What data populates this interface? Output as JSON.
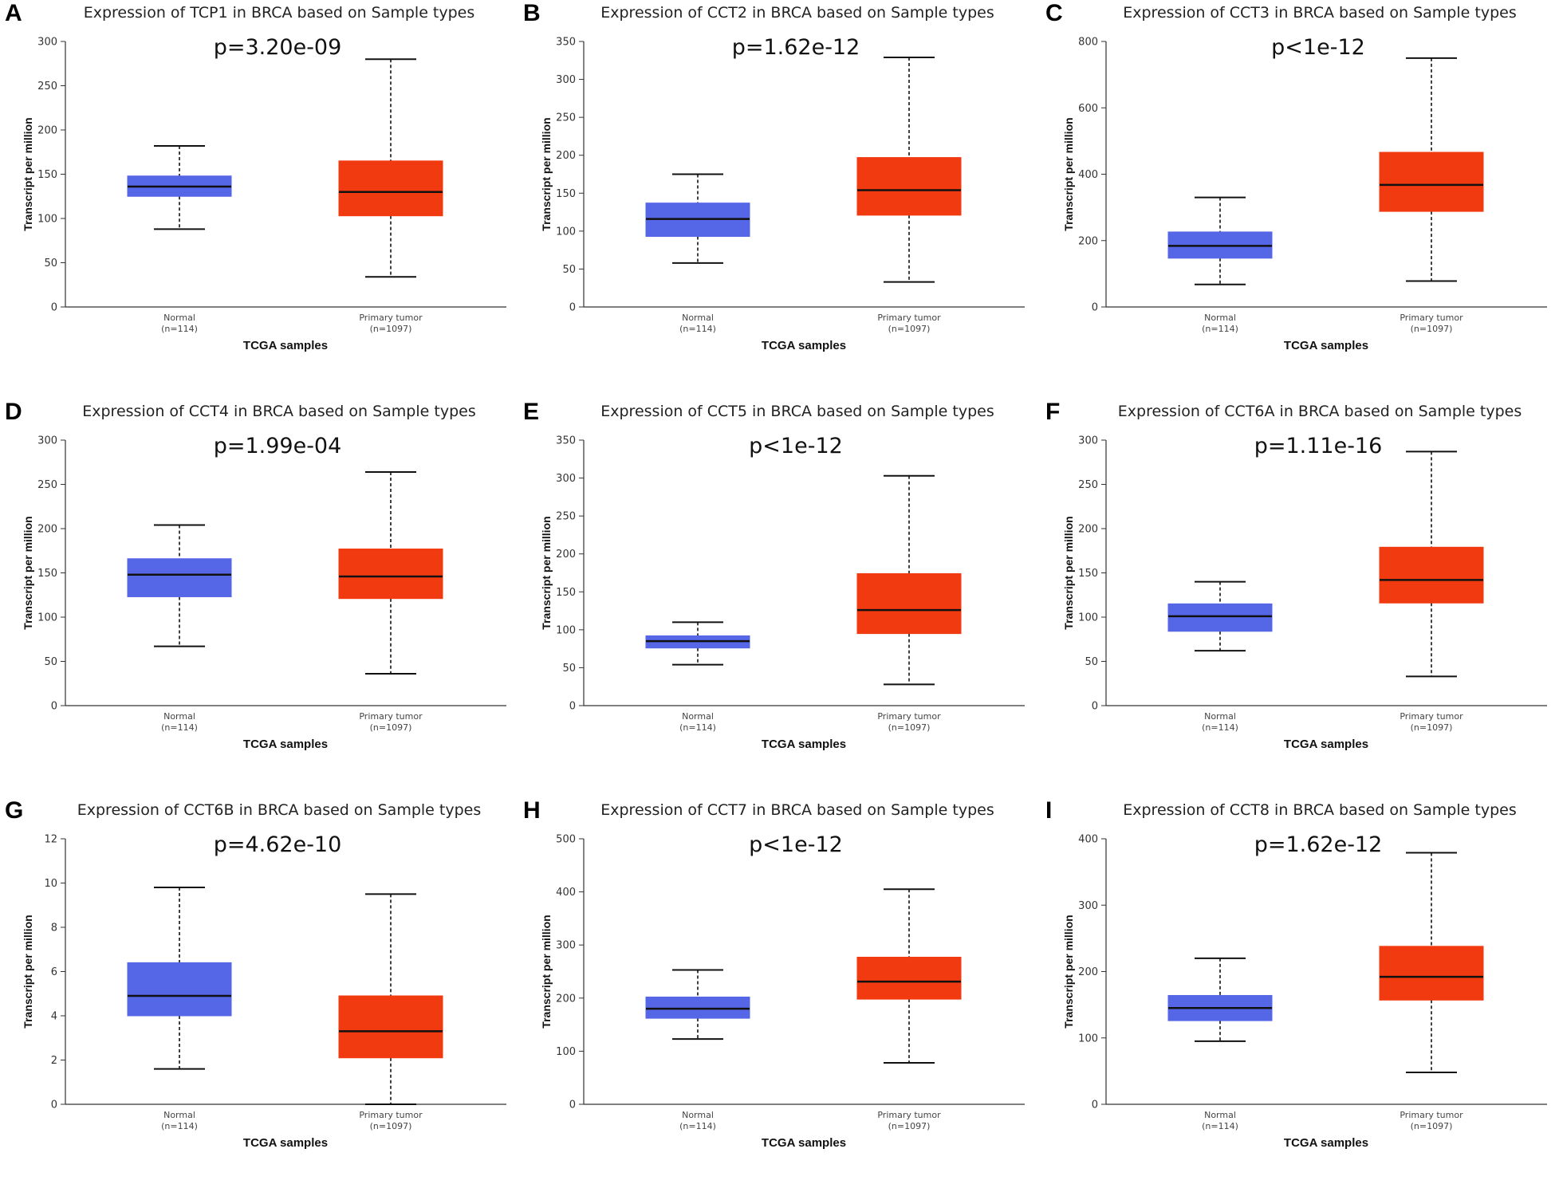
{
  "chart_data": [
    {
      "type": "box",
      "panel_label": "A",
      "title": "Expression of TCP1 in BRCA based on Sample types",
      "p_value": "p=3.20e-09",
      "xlabel": "TCGA samples",
      "ylabel": "Transcript per million",
      "ylim": [
        0,
        300
      ],
      "yticks": [
        0,
        50,
        100,
        150,
        200,
        250,
        300
      ],
      "groups": [
        {
          "name": "Normal",
          "n": "(n=114)",
          "color": "#5566e6",
          "min": 88,
          "q1": 125,
          "median": 136,
          "q3": 148,
          "max": 182
        },
        {
          "name": "Primary tumor",
          "n": "(n=1097)",
          "color": "#f23a10",
          "min": 34,
          "q1": 103,
          "median": 130,
          "q3": 165,
          "max": 280
        }
      ]
    },
    {
      "type": "box",
      "panel_label": "B",
      "title": "Expression of CCT2 in BRCA based on Sample types",
      "p_value": "p=1.62e-12",
      "xlabel": "TCGA samples",
      "ylabel": "Transcript per million",
      "ylim": [
        0,
        350
      ],
      "yticks": [
        0,
        50,
        100,
        150,
        200,
        250,
        300,
        350
      ],
      "groups": [
        {
          "name": "Normal",
          "n": "(n=114)",
          "color": "#5566e6",
          "min": 58,
          "q1": 93,
          "median": 116,
          "q3": 137,
          "max": 175
        },
        {
          "name": "Primary tumor",
          "n": "(n=1097)",
          "color": "#f23a10",
          "min": 33,
          "q1": 121,
          "median": 154,
          "q3": 197,
          "max": 329
        }
      ]
    },
    {
      "type": "box",
      "panel_label": "C",
      "title": "Expression of CCT3 in BRCA based on Sample types",
      "p_value": "p<1e-12",
      "xlabel": "TCGA samples",
      "ylabel": "Transcript per million",
      "ylim": [
        0,
        800
      ],
      "yticks": [
        0,
        200,
        400,
        600,
        800
      ],
      "groups": [
        {
          "name": "Normal",
          "n": "(n=114)",
          "color": "#5566e6",
          "min": 68,
          "q1": 147,
          "median": 184,
          "q3": 226,
          "max": 330
        },
        {
          "name": "Primary tumor",
          "n": "(n=1097)",
          "color": "#f23a10",
          "min": 78,
          "q1": 288,
          "median": 368,
          "q3": 466,
          "max": 750
        }
      ]
    },
    {
      "type": "box",
      "panel_label": "D",
      "title": "Expression of CCT4 in BRCA based on Sample types",
      "p_value": "p=1.99e-04",
      "xlabel": "TCGA samples",
      "ylabel": "Transcript per million",
      "ylim": [
        0,
        300
      ],
      "yticks": [
        0,
        50,
        100,
        150,
        200,
        250,
        300
      ],
      "groups": [
        {
          "name": "Normal",
          "n": "(n=114)",
          "color": "#5566e6",
          "min": 67,
          "q1": 123,
          "median": 148,
          "q3": 166,
          "max": 204
        },
        {
          "name": "Primary tumor",
          "n": "(n=1097)",
          "color": "#f23a10",
          "min": 36,
          "q1": 121,
          "median": 146,
          "q3": 177,
          "max": 264
        }
      ]
    },
    {
      "type": "box",
      "panel_label": "E",
      "title": "Expression of CCT5 in BRCA based on Sample types",
      "p_value": "p<1e-12",
      "xlabel": "TCGA samples",
      "ylabel": "Transcript per million",
      "ylim": [
        0,
        350
      ],
      "yticks": [
        0,
        50,
        100,
        150,
        200,
        250,
        300,
        350
      ],
      "groups": [
        {
          "name": "Normal",
          "n": "(n=114)",
          "color": "#5566e6",
          "min": 54,
          "q1": 76,
          "median": 85,
          "q3": 92,
          "max": 110
        },
        {
          "name": "Primary tumor",
          "n": "(n=1097)",
          "color": "#f23a10",
          "min": 28,
          "q1": 95,
          "median": 126,
          "q3": 174,
          "max": 303
        }
      ]
    },
    {
      "type": "box",
      "panel_label": "F",
      "title": "Expression of CCT6A in BRCA based on Sample types",
      "p_value": "p=1.11e-16",
      "xlabel": "TCGA samples",
      "ylabel": "Transcript per million",
      "ylim": [
        0,
        300
      ],
      "yticks": [
        0,
        50,
        100,
        150,
        200,
        250,
        300
      ],
      "groups": [
        {
          "name": "Normal",
          "n": "(n=114)",
          "color": "#5566e6",
          "min": 62,
          "q1": 84,
          "median": 101,
          "q3": 115,
          "max": 140
        },
        {
          "name": "Primary tumor",
          "n": "(n=1097)",
          "color": "#f23a10",
          "min": 33,
          "q1": 116,
          "median": 142,
          "q3": 179,
          "max": 287
        }
      ]
    },
    {
      "type": "box",
      "panel_label": "G",
      "title": "Expression of CCT6B in BRCA based on Sample types",
      "p_value": "p=4.62e-10",
      "xlabel": "TCGA samples",
      "ylabel": "Transcript per million",
      "ylim": [
        0,
        12
      ],
      "yticks": [
        0,
        2,
        4,
        6,
        8,
        10,
        12
      ],
      "groups": [
        {
          "name": "Normal",
          "n": "(n=114)",
          "color": "#5566e6",
          "min": 1.6,
          "q1": 4.0,
          "median": 4.9,
          "q3": 6.4,
          "max": 9.8
        },
        {
          "name": "Primary tumor",
          "n": "(n=1097)",
          "color": "#f23a10",
          "min": 0.0,
          "q1": 2.1,
          "median": 3.3,
          "q3": 4.9,
          "max": 9.5
        }
      ]
    },
    {
      "type": "box",
      "panel_label": "H",
      "title": "Expression of CCT7 in BRCA based on Sample types",
      "p_value": "p<1e-12",
      "xlabel": "TCGA samples",
      "ylabel": "Transcript per million",
      "ylim": [
        0,
        500
      ],
      "yticks": [
        0,
        100,
        200,
        300,
        400,
        500
      ],
      "groups": [
        {
          "name": "Normal",
          "n": "(n=114)",
          "color": "#5566e6",
          "min": 123,
          "q1": 162,
          "median": 180,
          "q3": 202,
          "max": 253
        },
        {
          "name": "Primary tumor",
          "n": "(n=1097)",
          "color": "#f23a10",
          "min": 78,
          "q1": 198,
          "median": 231,
          "q3": 277,
          "max": 405
        }
      ]
    },
    {
      "type": "box",
      "panel_label": "I",
      "title": "Expression of CCT8 in BRCA based on Sample types",
      "p_value": "p=1.62e-12",
      "xlabel": "TCGA samples",
      "ylabel": "Transcript per million",
      "ylim": [
        0,
        400
      ],
      "yticks": [
        0,
        100,
        200,
        300,
        400
      ],
      "groups": [
        {
          "name": "Normal",
          "n": "(n=114)",
          "color": "#5566e6",
          "min": 95,
          "q1": 126,
          "median": 145,
          "q3": 164,
          "max": 220
        },
        {
          "name": "Primary tumor",
          "n": "(n=1097)",
          "color": "#f23a10",
          "min": 48,
          "q1": 157,
          "median": 192,
          "q3": 238,
          "max": 379
        }
      ]
    }
  ]
}
